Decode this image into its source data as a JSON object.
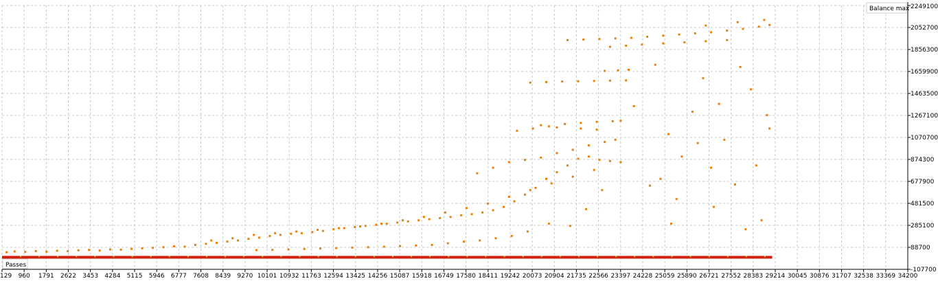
{
  "chart_data": {
    "type": "scatter",
    "title": "",
    "xlabel": "Passes",
    "ylabel": "Balance max",
    "xlim": [
      129,
      34200
    ],
    "ylim": [
      -107700,
      2249100
    ],
    "grid": true,
    "x_ticks": [
      "129",
      "960",
      "1791",
      "2622",
      "3453",
      "4284",
      "5115",
      "5946",
      "6777",
      "7608",
      "8439",
      "9270",
      "10101",
      "10932",
      "11763",
      "12594",
      "13425",
      "14256",
      "15087",
      "15918",
      "16749",
      "17580",
      "18411",
      "19242",
      "20073",
      "20904",
      "21735",
      "22566",
      "23397",
      "24228",
      "25059",
      "25890",
      "26721",
      "27552",
      "28383",
      "29214",
      "30045",
      "30876",
      "31707",
      "32538",
      "33369",
      "34200"
    ],
    "y_ticks": [
      "2249100",
      "2052700",
      "1856300",
      "1659900",
      "1463500",
      "1267100",
      "1070700",
      "874300",
      "677900",
      "481500",
      "285100",
      "88700",
      "-107700"
    ],
    "colors": {
      "main": "#e6820f",
      "baseline": "#d41f0c",
      "baseline_alt": "#a6c21c",
      "grid": "#c8c8c8"
    },
    "points": [
      [
        300,
        45000
      ],
      [
        600,
        52000
      ],
      [
        1000,
        48000
      ],
      [
        1400,
        55000
      ],
      [
        1800,
        50000
      ],
      [
        2200,
        58000
      ],
      [
        2600,
        54000
      ],
      [
        3000,
        62000
      ],
      [
        3400,
        66000
      ],
      [
        3800,
        60000
      ],
      [
        4200,
        70000
      ],
      [
        4600,
        68000
      ],
      [
        5000,
        75000
      ],
      [
        5400,
        80000
      ],
      [
        5800,
        84000
      ],
      [
        6200,
        90000
      ],
      [
        6600,
        98000
      ],
      [
        7000,
        95000
      ],
      [
        7400,
        110000
      ],
      [
        7800,
        120000
      ],
      [
        8200,
        128000
      ],
      [
        8600,
        140000
      ],
      [
        9000,
        150000
      ],
      [
        9400,
        165000
      ],
      [
        9800,
        175000
      ],
      [
        10200,
        190000
      ],
      [
        10600,
        200000
      ],
      [
        11000,
        210000
      ],
      [
        11400,
        215000
      ],
      [
        11800,
        225000
      ],
      [
        12200,
        235000
      ],
      [
        12600,
        250000
      ],
      [
        13000,
        260000
      ],
      [
        13400,
        270000
      ],
      [
        13800,
        280000
      ],
      [
        14200,
        290000
      ],
      [
        14600,
        300000
      ],
      [
        15000,
        310000
      ],
      [
        15400,
        320000
      ],
      [
        15800,
        330000
      ],
      [
        16200,
        340000
      ],
      [
        16600,
        350000
      ],
      [
        17000,
        360000
      ],
      [
        17400,
        375000
      ],
      [
        17800,
        385000
      ],
      [
        18200,
        400000
      ],
      [
        18600,
        420000
      ],
      [
        19000,
        450000
      ],
      [
        19400,
        500000
      ],
      [
        19800,
        560000
      ],
      [
        20200,
        620000
      ],
      [
        20600,
        700000
      ],
      [
        21000,
        760000
      ],
      [
        21400,
        820000
      ],
      [
        21800,
        880000
      ],
      [
        22200,
        900000
      ],
      [
        22600,
        870000
      ],
      [
        23000,
        860000
      ],
      [
        23400,
        850000
      ],
      [
        8000,
        150000
      ],
      [
        8800,
        170000
      ],
      [
        9600,
        200000
      ],
      [
        10400,
        215000
      ],
      [
        11200,
        230000
      ],
      [
        12000,
        245000
      ],
      [
        12800,
        260000
      ],
      [
        13600,
        275000
      ],
      [
        14400,
        300000
      ],
      [
        15200,
        330000
      ],
      [
        16000,
        360000
      ],
      [
        16800,
        400000
      ],
      [
        17600,
        440000
      ],
      [
        18400,
        480000
      ],
      [
        19200,
        540000
      ],
      [
        20000,
        600000
      ],
      [
        20800,
        660000
      ],
      [
        21600,
        720000
      ],
      [
        22400,
        780000
      ],
      [
        18000,
        750000
      ],
      [
        18600,
        800000
      ],
      [
        19200,
        850000
      ],
      [
        19800,
        870000
      ],
      [
        20400,
        890000
      ],
      [
        21000,
        930000
      ],
      [
        21600,
        960000
      ],
      [
        22200,
        1000000
      ],
      [
        22800,
        1030000
      ],
      [
        23200,
        1050000
      ],
      [
        19500,
        1130000
      ],
      [
        20100,
        1150000
      ],
      [
        20700,
        1170000
      ],
      [
        21300,
        1190000
      ],
      [
        21900,
        1200000
      ],
      [
        22500,
        1210000
      ],
      [
        23100,
        1215000
      ],
      [
        23400,
        1220000
      ],
      [
        20000,
        1560000
      ],
      [
        20600,
        1565000
      ],
      [
        21200,
        1570000
      ],
      [
        21800,
        1572000
      ],
      [
        22400,
        1575000
      ],
      [
        23000,
        1578000
      ],
      [
        23600,
        1580000
      ],
      [
        22800,
        1665000
      ],
      [
        23300,
        1670000
      ],
      [
        23700,
        1675000
      ],
      [
        21400,
        1940000
      ],
      [
        22000,
        1945000
      ],
      [
        22600,
        1950000
      ],
      [
        23200,
        1955000
      ],
      [
        23800,
        1960000
      ],
      [
        24400,
        1970000
      ],
      [
        25000,
        1980000
      ],
      [
        25600,
        1990000
      ],
      [
        26200,
        2000000
      ],
      [
        26800,
        2010000
      ],
      [
        27400,
        2025000
      ],
      [
        28000,
        2040000
      ],
      [
        28600,
        2060000
      ],
      [
        29000,
        2075000
      ],
      [
        28800,
        2120000
      ],
      [
        27800,
        2100000
      ],
      [
        26600,
        2070000
      ],
      [
        23000,
        1880000
      ],
      [
        23600,
        1890000
      ],
      [
        24200,
        1900000
      ],
      [
        25000,
        1910000
      ],
      [
        25800,
        1920000
      ],
      [
        26600,
        1930000
      ],
      [
        27400,
        1940000
      ],
      [
        20400,
        1180000
      ],
      [
        21000,
        1160000
      ],
      [
        21900,
        1150000
      ],
      [
        22500,
        1140000
      ],
      [
        23900,
        1350000
      ],
      [
        24900,
        700000
      ],
      [
        25300,
        300000
      ],
      [
        25700,
        900000
      ],
      [
        26100,
        1300000
      ],
      [
        26500,
        1600000
      ],
      [
        26900,
        450000
      ],
      [
        27300,
        1050000
      ],
      [
        27700,
        650000
      ],
      [
        28100,
        250000
      ],
      [
        28500,
        820000
      ],
      [
        28900,
        1270000
      ],
      [
        29000,
        1150000
      ],
      [
        28700,
        330000
      ],
      [
        25500,
        520000
      ],
      [
        24700,
        1720000
      ],
      [
        26300,
        1020000
      ],
      [
        27100,
        1370000
      ],
      [
        27900,
        1700000
      ],
      [
        25200,
        1100000
      ],
      [
        24500,
        640000
      ],
      [
        26800,
        800000
      ],
      [
        28300,
        1500000
      ],
      [
        22700,
        600000
      ],
      [
        22100,
        430000
      ],
      [
        21500,
        280000
      ],
      [
        20700,
        300000
      ],
      [
        19900,
        230000
      ],
      [
        19300,
        190000
      ],
      [
        18700,
        170000
      ],
      [
        18100,
        150000
      ],
      [
        17500,
        140000
      ],
      [
        16900,
        125000
      ],
      [
        16300,
        110000
      ],
      [
        15700,
        105000
      ],
      [
        15100,
        100000
      ],
      [
        14500,
        95000
      ],
      [
        13900,
        90000
      ],
      [
        13300,
        86000
      ],
      [
        12700,
        82000
      ],
      [
        12100,
        78000
      ],
      [
        11500,
        74000
      ],
      [
        10900,
        70000
      ],
      [
        10300,
        66000
      ],
      [
        9700,
        64000
      ]
    ]
  }
}
